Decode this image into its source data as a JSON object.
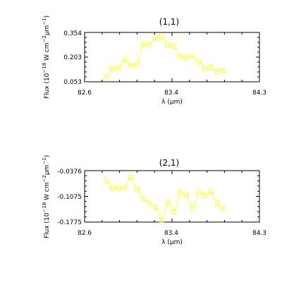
{
  "colors": {
    "series": "#ffff33",
    "axes": "#000000",
    "background": "#ffffff"
  },
  "chart_data": [
    {
      "type": "line",
      "marker": "square",
      "title": "(1,1)",
      "xlabel": "λ (μm)",
      "ylabel": "Flux (10⁻¹⁸ W cm⁻² μm⁻¹)",
      "ylabel_parts": {
        "a": "Flux (10",
        "b": "−18",
        "c": " W cm",
        "d": "−2",
        "e": "μm",
        "f": "−1",
        "g": ")"
      },
      "xlim": [
        82.6,
        84.3
      ],
      "ylim": [
        0.053,
        0.354
      ],
      "xticks": [
        "82.6",
        "83.4",
        "84.3"
      ],
      "yticks": [
        "0.354",
        "0.203",
        "0.053"
      ],
      "x": [
        82.81,
        82.87,
        82.93,
        82.99,
        83.05,
        83.11,
        83.17,
        83.23,
        83.29,
        83.35,
        83.41,
        83.47,
        83.53,
        83.59,
        83.65,
        83.71,
        83.77,
        83.83,
        83.89,
        83.95
      ],
      "y": [
        0.077,
        0.132,
        0.134,
        0.19,
        0.152,
        0.156,
        0.284,
        0.28,
        0.318,
        0.328,
        0.278,
        0.27,
        0.21,
        0.197,
        0.209,
        0.175,
        0.133,
        0.141,
        0.115,
        0.124
      ]
    },
    {
      "type": "line",
      "marker": "square",
      "title": "(2,1)",
      "xlabel": "λ (μm)",
      "ylabel": "Flux (10⁻¹⁸ W cm⁻² μm⁻¹)",
      "ylabel_parts": {
        "a": "Flux (10",
        "b": "−18",
        "c": " W cm",
        "d": "−2",
        "e": "μm",
        "f": "−1",
        "g": ")"
      },
      "xlim": [
        82.6,
        84.3
      ],
      "ylim": [
        -0.1775,
        -0.0376
      ],
      "xticks": [
        "82.6",
        "83.4",
        "84.3"
      ],
      "yticks": [
        "-0.0376",
        "-0.1075",
        "-0.1775"
      ],
      "x": [
        82.81,
        82.87,
        82.93,
        82.99,
        83.05,
        83.11,
        83.17,
        83.23,
        83.29,
        83.35,
        83.41,
        83.47,
        83.53,
        83.59,
        83.65,
        83.71,
        83.77,
        83.83,
        83.89,
        83.95
      ],
      "y": [
        -0.0655,
        -0.0858,
        -0.0858,
        -0.0853,
        -0.0559,
        -0.0892,
        -0.1134,
        -0.1271,
        -0.1385,
        -0.1725,
        -0.1226,
        -0.1498,
        -0.0989,
        -0.1015,
        -0.1399,
        -0.0972,
        -0.1046,
        -0.0948,
        -0.127,
        -0.1424
      ]
    }
  ]
}
